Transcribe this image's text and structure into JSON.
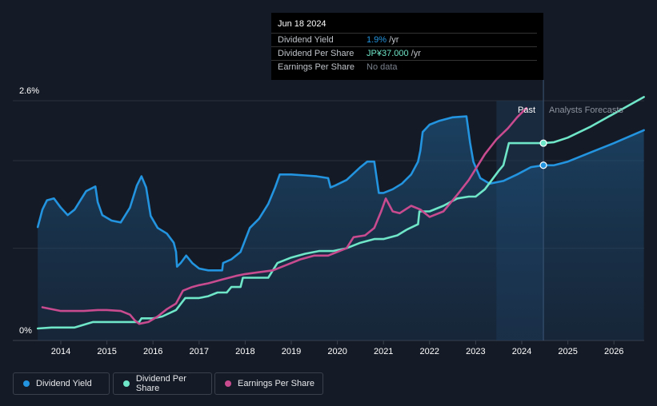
{
  "chart_data": {
    "type": "line",
    "title": "",
    "xlabel": "",
    "ylabel": "",
    "ylim": [
      0,
      2.6
    ],
    "x_ticks": [
      "2014",
      "2015",
      "2016",
      "2017",
      "2018",
      "2019",
      "2020",
      "2021",
      "2022",
      "2023",
      "2024",
      "2025",
      "2026"
    ],
    "y_tick_labels": [
      "2.6%",
      "0%"
    ],
    "grid": true,
    "legend_position": "bottom-left",
    "past_label": "Past",
    "forecast_label": "Analysts Forecasts",
    "forecast_start": 2023.45,
    "tooltip_x": 2024.47,
    "series": [
      {
        "name": "Dividend Yield",
        "color": "#2394df",
        "filled": true,
        "points": [
          [
            2013.5,
            1.23
          ],
          [
            2013.6,
            1.42
          ],
          [
            2013.7,
            1.52
          ],
          [
            2013.85,
            1.54
          ],
          [
            2014.0,
            1.44
          ],
          [
            2014.15,
            1.36
          ],
          [
            2014.3,
            1.42
          ],
          [
            2014.55,
            1.62
          ],
          [
            2014.75,
            1.67
          ],
          [
            2014.8,
            1.5
          ],
          [
            2014.9,
            1.36
          ],
          [
            2015.1,
            1.3
          ],
          [
            2015.3,
            1.28
          ],
          [
            2015.5,
            1.44
          ],
          [
            2015.65,
            1.68
          ],
          [
            2015.75,
            1.78
          ],
          [
            2015.85,
            1.66
          ],
          [
            2015.95,
            1.35
          ],
          [
            2016.1,
            1.22
          ],
          [
            2016.3,
            1.16
          ],
          [
            2016.45,
            1.06
          ],
          [
            2016.5,
            0.96
          ],
          [
            2016.52,
            0.8
          ],
          [
            2016.6,
            0.84
          ],
          [
            2016.72,
            0.92
          ],
          [
            2016.85,
            0.84
          ],
          [
            2017.0,
            0.78
          ],
          [
            2017.2,
            0.76
          ],
          [
            2017.5,
            0.76
          ],
          [
            2017.52,
            0.84
          ],
          [
            2017.7,
            0.88
          ],
          [
            2017.9,
            0.96
          ],
          [
            2018.1,
            1.22
          ],
          [
            2018.3,
            1.32
          ],
          [
            2018.5,
            1.48
          ],
          [
            2018.65,
            1.66
          ],
          [
            2018.75,
            1.8
          ],
          [
            2019.0,
            1.8
          ],
          [
            2019.3,
            1.79
          ],
          [
            2019.55,
            1.78
          ],
          [
            2019.8,
            1.76
          ],
          [
            2019.85,
            1.66
          ],
          [
            2019.95,
            1.68
          ],
          [
            2020.2,
            1.74
          ],
          [
            2020.5,
            1.88
          ],
          [
            2020.65,
            1.94
          ],
          [
            2020.8,
            1.94
          ],
          [
            2020.9,
            1.6
          ],
          [
            2021.0,
            1.6
          ],
          [
            2021.2,
            1.64
          ],
          [
            2021.4,
            1.7
          ],
          [
            2021.6,
            1.8
          ],
          [
            2021.75,
            1.94
          ],
          [
            2021.8,
            2.06
          ],
          [
            2021.85,
            2.26
          ],
          [
            2022.0,
            2.34
          ],
          [
            2022.2,
            2.38
          ],
          [
            2022.5,
            2.42
          ],
          [
            2022.8,
            2.43
          ],
          [
            2022.88,
            2.14
          ],
          [
            2022.95,
            1.94
          ],
          [
            2023.1,
            1.76
          ],
          [
            2023.3,
            1.7
          ],
          [
            2023.6,
            1.73
          ],
          [
            2023.9,
            1.8
          ],
          [
            2024.2,
            1.88
          ],
          [
            2024.47,
            1.9
          ],
          [
            2024.7,
            1.9
          ],
          [
            2025.0,
            1.94
          ],
          [
            2025.5,
            2.04
          ],
          [
            2026.0,
            2.14
          ],
          [
            2026.65,
            2.28
          ]
        ]
      },
      {
        "name": "Dividend Per Share",
        "color": "#6fe6c8",
        "filled": false,
        "points": [
          [
            2013.5,
            0.13
          ],
          [
            2013.8,
            0.14
          ],
          [
            2014.3,
            0.14
          ],
          [
            2014.7,
            0.2
          ],
          [
            2015.0,
            0.2
          ],
          [
            2015.5,
            0.2
          ],
          [
            2015.7,
            0.2
          ],
          [
            2015.75,
            0.24
          ],
          [
            2016.0,
            0.24
          ],
          [
            2016.2,
            0.26
          ],
          [
            2016.5,
            0.33
          ],
          [
            2016.7,
            0.46
          ],
          [
            2017.0,
            0.46
          ],
          [
            2017.2,
            0.48
          ],
          [
            2017.4,
            0.52
          ],
          [
            2017.6,
            0.52
          ],
          [
            2017.7,
            0.58
          ],
          [
            2017.9,
            0.58
          ],
          [
            2017.95,
            0.68
          ],
          [
            2018.2,
            0.68
          ],
          [
            2018.5,
            0.68
          ],
          [
            2018.7,
            0.84
          ],
          [
            2019.0,
            0.9
          ],
          [
            2019.3,
            0.94
          ],
          [
            2019.6,
            0.97
          ],
          [
            2019.9,
            0.97
          ],
          [
            2020.2,
            1.0
          ],
          [
            2020.5,
            1.06
          ],
          [
            2020.8,
            1.1
          ],
          [
            2021.0,
            1.1
          ],
          [
            2021.3,
            1.14
          ],
          [
            2021.5,
            1.2
          ],
          [
            2021.75,
            1.26
          ],
          [
            2021.78,
            1.4
          ],
          [
            2022.0,
            1.4
          ],
          [
            2022.3,
            1.46
          ],
          [
            2022.6,
            1.54
          ],
          [
            2022.85,
            1.56
          ],
          [
            2023.0,
            1.56
          ],
          [
            2023.2,
            1.64
          ],
          [
            2023.5,
            1.84
          ],
          [
            2023.6,
            1.9
          ],
          [
            2023.72,
            2.14
          ],
          [
            2023.85,
            2.14
          ],
          [
            2024.47,
            2.14
          ],
          [
            2024.7,
            2.15
          ],
          [
            2025.0,
            2.2
          ],
          [
            2025.5,
            2.32
          ],
          [
            2026.0,
            2.46
          ],
          [
            2026.65,
            2.64
          ]
        ]
      },
      {
        "name": "Earnings Per Share",
        "color": "#c84b8f",
        "filled": false,
        "points": [
          [
            2013.6,
            0.36
          ],
          [
            2014.0,
            0.32
          ],
          [
            2014.5,
            0.32
          ],
          [
            2014.8,
            0.33
          ],
          [
            2015.0,
            0.33
          ],
          [
            2015.3,
            0.32
          ],
          [
            2015.5,
            0.28
          ],
          [
            2015.6,
            0.22
          ],
          [
            2015.7,
            0.18
          ],
          [
            2015.9,
            0.2
          ],
          [
            2016.1,
            0.26
          ],
          [
            2016.3,
            0.34
          ],
          [
            2016.5,
            0.4
          ],
          [
            2016.65,
            0.54
          ],
          [
            2016.85,
            0.58
          ],
          [
            2017.0,
            0.6
          ],
          [
            2017.2,
            0.62
          ],
          [
            2017.5,
            0.66
          ],
          [
            2017.8,
            0.7
          ],
          [
            2018.0,
            0.72
          ],
          [
            2018.3,
            0.74
          ],
          [
            2018.6,
            0.76
          ],
          [
            2018.9,
            0.82
          ],
          [
            2019.2,
            0.88
          ],
          [
            2019.5,
            0.92
          ],
          [
            2019.8,
            0.92
          ],
          [
            2020.0,
            0.96
          ],
          [
            2020.2,
            1.0
          ],
          [
            2020.35,
            1.12
          ],
          [
            2020.6,
            1.14
          ],
          [
            2020.8,
            1.22
          ],
          [
            2020.95,
            1.4
          ],
          [
            2021.05,
            1.54
          ],
          [
            2021.2,
            1.4
          ],
          [
            2021.35,
            1.38
          ],
          [
            2021.6,
            1.46
          ],
          [
            2021.8,
            1.42
          ],
          [
            2022.0,
            1.34
          ],
          [
            2022.3,
            1.4
          ],
          [
            2022.6,
            1.58
          ],
          [
            2022.85,
            1.74
          ],
          [
            2023.0,
            1.86
          ],
          [
            2023.2,
            2.02
          ],
          [
            2023.45,
            2.18
          ],
          [
            2023.7,
            2.3
          ],
          [
            2023.9,
            2.42
          ],
          [
            2024.1,
            2.52
          ]
        ]
      }
    ],
    "markers": [
      {
        "series": "Dividend Yield",
        "x": 2024.47,
        "y": 1.9
      },
      {
        "series": "Dividend Per Share",
        "x": 2024.47,
        "y": 2.14
      }
    ]
  },
  "tooltip": {
    "date": "Jun 18 2024",
    "rows": [
      {
        "label": "Dividend Yield",
        "value": "1.9%",
        "unit": " /yr",
        "color": "#2394df"
      },
      {
        "label": "Dividend Per Share",
        "value": "JP¥37.000",
        "unit": " /yr",
        "color": "#6fe6c8"
      },
      {
        "label": "Earnings Per Share",
        "value": "No data",
        "unit": "",
        "color": "#7a818c"
      }
    ]
  },
  "legend": {
    "items": [
      {
        "label": "Dividend Yield",
        "color": "#2394df"
      },
      {
        "label": "Dividend Per Share",
        "color": "#6fe6c8"
      },
      {
        "label": "Earnings Per Share",
        "color": "#c84b8f"
      }
    ]
  }
}
